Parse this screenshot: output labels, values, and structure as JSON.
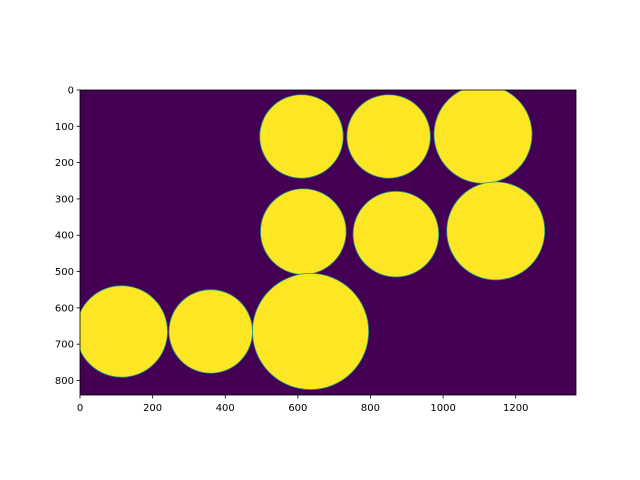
{
  "chart_data": {
    "type": "heatmap",
    "title": "",
    "xlabel": "",
    "ylabel": "",
    "colormap": "viridis",
    "background_color": "#440154",
    "foreground_color": "#fde725",
    "edge_color": "#21918c",
    "image_width": 1366,
    "image_height": 840,
    "xlim": [
      0,
      1366
    ],
    "ylim": [
      840,
      0
    ],
    "y_inverted": true,
    "xticks": [
      0,
      200,
      400,
      600,
      800,
      1000,
      1200
    ],
    "yticks": [
      0,
      100,
      200,
      300,
      400,
      500,
      600,
      700,
      800
    ],
    "grid": false,
    "circles": [
      {
        "cx": 610,
        "cy": 128,
        "r": 115
      },
      {
        "cx": 850,
        "cy": 128,
        "r": 115
      },
      {
        "cx": 1110,
        "cy": 122,
        "r": 135
      },
      {
        "cx": 615,
        "cy": 390,
        "r": 118
      },
      {
        "cx": 870,
        "cy": 397,
        "r": 118
      },
      {
        "cx": 1145,
        "cy": 388,
        "r": 135
      },
      {
        "cx": 115,
        "cy": 665,
        "r": 126
      },
      {
        "cx": 360,
        "cy": 665,
        "r": 115
      },
      {
        "cx": 635,
        "cy": 665,
        "r": 160
      }
    ]
  }
}
